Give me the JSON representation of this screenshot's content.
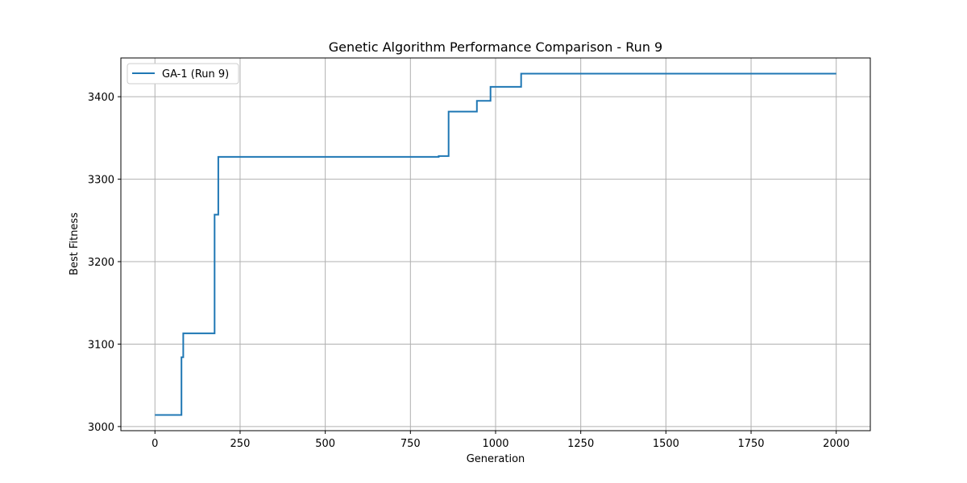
{
  "chart_data": {
    "type": "line",
    "title": "Genetic Algorithm Performance Comparison - Run 9",
    "xlabel": "Generation",
    "ylabel": "Best Fitness",
    "xlim": [
      -100,
      2100
    ],
    "ylim": [
      2995,
      3447
    ],
    "xticks": [
      0,
      250,
      500,
      750,
      1000,
      1250,
      1500,
      1750,
      2000
    ],
    "yticks": [
      3000,
      3100,
      3200,
      3300,
      3400
    ],
    "grid": true,
    "legend_position": "top-left",
    "series": [
      {
        "name": "GA-1 (Run 9)",
        "color": "#1f77b4",
        "step": "post",
        "x": [
          0,
          78,
          83,
          175,
          180,
          186,
          833,
          862,
          945,
          985,
          1075,
          2000
        ],
        "y": [
          3014,
          3084,
          3113,
          3257,
          3257,
          3327,
          3328,
          3382,
          3395,
          3412,
          3428,
          3428
        ]
      }
    ]
  }
}
